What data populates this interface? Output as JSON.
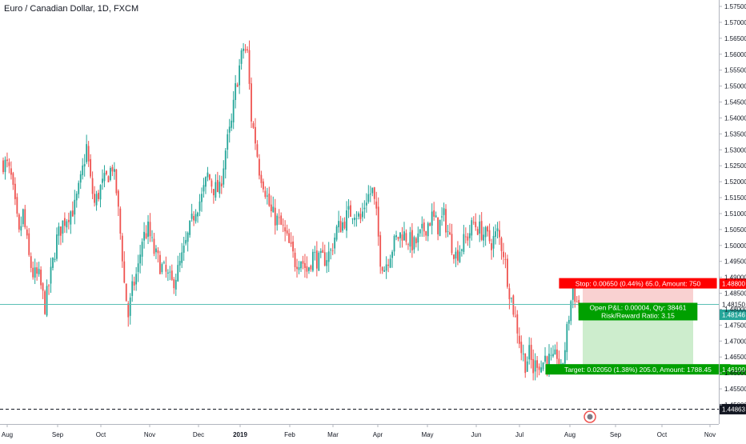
{
  "chart_data": {
    "type": "candlestick",
    "title": "Euro / Canadian Dollar, 1D, FXCM",
    "ylim": [
      1.4455,
      1.5775
    ],
    "y_ticks": [
      "1.57500",
      "1.57000",
      "1.56500",
      "1.56000",
      "1.55500",
      "1.55000",
      "1.54500",
      "1.54000",
      "1.53500",
      "1.53000",
      "1.52500",
      "1.52000",
      "1.51500",
      "1.51000",
      "1.50500",
      "1.50000",
      "1.49500",
      "1.49000",
      "1.48500",
      "1.48000",
      "1.47500",
      "1.47000",
      "1.46500",
      "1.46000",
      "1.45500",
      "1.45000"
    ],
    "x_ticks": [
      "Aug",
      "Sep",
      "Oct",
      "Nov",
      "Dec",
      "2019",
      "Feb",
      "Mar",
      "Apr",
      "May",
      "Jun",
      "Jul",
      "Aug",
      "Sep",
      "Oct",
      "Nov"
    ],
    "last_price": "1.48150",
    "last_price_value": 1.4815,
    "current_price": "1.48146",
    "dashed_level": "1.44863",
    "dashed_level_value": 1.44863,
    "close_path": [
      [
        0,
        1.526
      ],
      [
        2,
        1.525
      ],
      [
        4,
        1.521
      ],
      [
        6,
        1.512
      ],
      [
        8,
        1.503
      ],
      [
        10,
        1.51
      ],
      [
        13,
        1.496
      ],
      [
        15,
        1.491
      ],
      [
        18,
        1.49
      ],
      [
        21,
        1.481
      ],
      [
        24,
        1.491
      ],
      [
        27,
        1.502
      ],
      [
        30,
        1.507
      ],
      [
        33,
        1.51
      ],
      [
        36,
        1.512
      ],
      [
        39,
        1.52
      ],
      [
        42,
        1.531
      ],
      [
        44,
        1.52
      ],
      [
        46,
        1.513
      ],
      [
        49,
        1.518
      ],
      [
        52,
        1.521
      ],
      [
        55,
        1.525
      ],
      [
        57,
        1.517
      ],
      [
        60,
        1.497
      ],
      [
        61,
        1.488
      ],
      [
        63,
        1.478
      ],
      [
        65,
        1.486
      ],
      [
        68,
        1.493
      ],
      [
        70,
        1.502
      ],
      [
        73,
        1.505
      ],
      [
        76,
        1.498
      ],
      [
        79,
        1.494
      ],
      [
        82,
        1.491
      ],
      [
        85,
        1.488
      ],
      [
        88,
        1.492
      ],
      [
        91,
        1.498
      ],
      [
        94,
        1.505
      ],
      [
        97,
        1.512
      ],
      [
        100,
        1.515
      ],
      [
        103,
        1.522
      ],
      [
        106,
        1.518
      ],
      [
        109,
        1.517
      ],
      [
        112,
        1.53
      ],
      [
        115,
        1.538
      ],
      [
        117,
        1.549
      ],
      [
        119,
        1.556
      ],
      [
        121,
        1.562
      ],
      [
        123,
        1.56
      ],
      [
        125,
        1.54
      ],
      [
        127,
        1.533
      ],
      [
        129,
        1.524
      ],
      [
        131,
        1.52
      ],
      [
        133,
        1.515
      ],
      [
        135,
        1.51
      ],
      [
        138,
        1.508
      ],
      [
        141,
        1.505
      ],
      [
        144,
        1.5
      ],
      [
        147,
        1.495
      ],
      [
        150,
        1.496
      ],
      [
        153,
        1.492
      ],
      [
        156,
        1.497
      ],
      [
        159,
        1.495
      ],
      [
        162,
        1.496
      ],
      [
        165,
        1.498
      ],
      [
        168,
        1.505
      ],
      [
        171,
        1.507
      ],
      [
        174,
        1.51
      ],
      [
        177,
        1.511
      ],
      [
        180,
        1.508
      ],
      [
        183,
        1.515
      ],
      [
        186,
        1.517
      ],
      [
        188,
        1.509
      ],
      [
        190,
        1.496
      ],
      [
        192,
        1.493
      ],
      [
        195,
        1.498
      ],
      [
        198,
        1.502
      ],
      [
        201,
        1.504
      ],
      [
        204,
        1.502
      ],
      [
        207,
        1.5
      ],
      [
        210,
        1.503
      ],
      [
        213,
        1.506
      ],
      [
        216,
        1.509
      ],
      [
        219,
        1.506
      ],
      [
        222,
        1.509
      ],
      [
        225,
        1.502
      ],
      [
        228,
        1.497
      ],
      [
        231,
        1.5
      ],
      [
        234,
        1.503
      ],
      [
        237,
        1.507
      ],
      [
        240,
        1.505
      ],
      [
        243,
        1.503
      ],
      [
        246,
        1.501
      ],
      [
        249,
        1.504
      ],
      [
        252,
        1.498
      ],
      [
        255,
        1.486
      ],
      [
        257,
        1.48
      ],
      [
        259,
        1.474
      ],
      [
        261,
        1.467
      ],
      [
        263,
        1.463
      ],
      [
        265,
        1.466
      ],
      [
        267,
        1.461
      ],
      [
        269,
        1.464
      ],
      [
        271,
        1.462
      ],
      [
        273,
        1.465
      ],
      [
        275,
        1.464
      ],
      [
        277,
        1.463
      ],
      [
        279,
        1.466
      ],
      [
        281,
        1.46
      ],
      [
        283,
        1.468
      ],
      [
        285,
        1.478
      ],
      [
        287,
        1.487
      ],
      [
        289,
        1.482
      ],
      [
        290,
        1.4815
      ]
    ],
    "position": {
      "entry": 1.4815,
      "stop": 1.488,
      "target": 1.461,
      "stop_price_label": "1.48800",
      "target_price_label": "1.46100",
      "stop_text": "Stop: 0.00650 (0.44%) 65.0, Amount: 750",
      "open_text": "Open P&L: 0.00004, Qty: 38461",
      "ratio_text": "Risk/Reward Ratio: 3.15",
      "target_text": "Target: 0.02050 (1.38%) 205.0, Amount: 1788.45"
    },
    "colors": {
      "up": "#26a69a",
      "down": "#ef5350",
      "price_line": "#5bbfb5",
      "stop_fill": "#f8c9c9",
      "target_fill": "#c8ebc8",
      "stop_label": "#ff0000",
      "target_label": "#00a000",
      "axis_text": "#131722"
    }
  }
}
